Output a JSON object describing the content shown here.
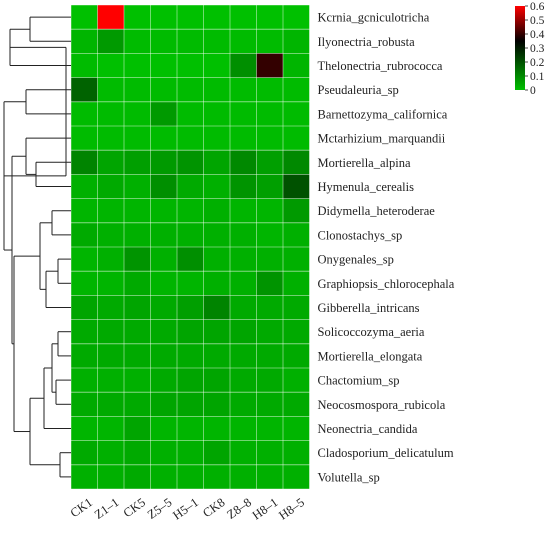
{
  "chart_data": {
    "type": "heatmap",
    "title": "",
    "xlabel": "",
    "ylabel": "",
    "columns": [
      "CK1",
      "Z1–1",
      "CK5",
      "Z5–5",
      "H5–1",
      "CK8",
      "Z8–8",
      "H8–1",
      "H8–5"
    ],
    "rows": [
      "Kcrnia_gcniculotricha",
      "Ilyonectria_robusta",
      "Thelonectria_rubrococca",
      "Pseudaleuria_sp",
      "Barnettozyma_californica",
      "Mctarhizium_marquandii",
      "Mortierella_alpina",
      "Hymenula_cerealis",
      "Didymella_heteroderae",
      "Clonostachys_sp",
      "Onygenales_sp",
      "Graphiopsis_chlorocephala",
      "Gibberella_intricans",
      "Solicoccozyma_aeria",
      "Mortierella_elongata",
      "Chactomium_sp",
      "Neocosmospora_rubicola",
      "Neonectria_candida",
      "Cladosporium_delicatulum",
      "Volutella_sp"
    ],
    "values": [
      [
        0.0,
        0.62,
        0.0,
        0.0,
        0.0,
        0.0,
        0.0,
        0.0,
        0.0
      ],
      [
        0.02,
        0.07,
        0.01,
        0.01,
        0.01,
        0.01,
        0.01,
        0.01,
        0.02
      ],
      [
        0.01,
        0.0,
        0.0,
        0.0,
        0.0,
        0.0,
        0.09,
        0.4,
        0.02
      ],
      [
        0.17,
        0.01,
        0.01,
        0.01,
        0.01,
        0.01,
        0.01,
        0.01,
        0.01
      ],
      [
        0.01,
        0.01,
        0.01,
        0.07,
        0.01,
        0.01,
        0.01,
        0.01,
        0.01
      ],
      [
        0.01,
        0.01,
        0.01,
        0.01,
        0.01,
        0.01,
        0.01,
        0.01,
        0.01
      ],
      [
        0.11,
        0.05,
        0.06,
        0.07,
        0.08,
        0.05,
        0.1,
        0.06,
        0.1
      ],
      [
        0.03,
        0.04,
        0.03,
        0.09,
        0.04,
        0.03,
        0.08,
        0.06,
        0.2
      ],
      [
        0.02,
        0.02,
        0.02,
        0.02,
        0.02,
        0.03,
        0.02,
        0.02,
        0.07
      ],
      [
        0.04,
        0.03,
        0.03,
        0.03,
        0.03,
        0.03,
        0.03,
        0.02,
        0.03
      ],
      [
        0.02,
        0.03,
        0.08,
        0.03,
        0.09,
        0.03,
        0.03,
        0.03,
        0.03
      ],
      [
        0.02,
        0.02,
        0.04,
        0.02,
        0.02,
        0.03,
        0.03,
        0.08,
        0.03
      ],
      [
        0.05,
        0.04,
        0.05,
        0.04,
        0.06,
        0.11,
        0.04,
        0.04,
        0.04
      ],
      [
        0.04,
        0.04,
        0.04,
        0.04,
        0.05,
        0.05,
        0.05,
        0.04,
        0.04
      ],
      [
        0.04,
        0.04,
        0.04,
        0.04,
        0.04,
        0.04,
        0.04,
        0.04,
        0.04
      ],
      [
        0.03,
        0.03,
        0.03,
        0.04,
        0.05,
        0.05,
        0.04,
        0.04,
        0.03
      ],
      [
        0.04,
        0.04,
        0.04,
        0.05,
        0.05,
        0.05,
        0.04,
        0.04,
        0.04
      ],
      [
        0.02,
        0.02,
        0.05,
        0.02,
        0.02,
        0.02,
        0.02,
        0.02,
        0.02
      ],
      [
        0.04,
        0.03,
        0.04,
        0.03,
        0.03,
        0.05,
        0.03,
        0.03,
        0.03
      ],
      [
        0.03,
        0.03,
        0.04,
        0.03,
        0.03,
        0.03,
        0.03,
        0.03,
        0.03
      ]
    ],
    "color_scale": {
      "range": [
        0,
        0.6
      ],
      "stops": [
        {
          "value": 0,
          "color": "#00c000"
        },
        {
          "value": 0.35,
          "color": "#000000"
        },
        {
          "value": 0.6,
          "color": "#ff0000"
        }
      ],
      "ticks": [
        "0",
        "0.1",
        "0.2",
        "0.3",
        "0.4",
        "0.5",
        "0.6"
      ]
    },
    "legend": "top-right",
    "dendrogram": "left"
  }
}
